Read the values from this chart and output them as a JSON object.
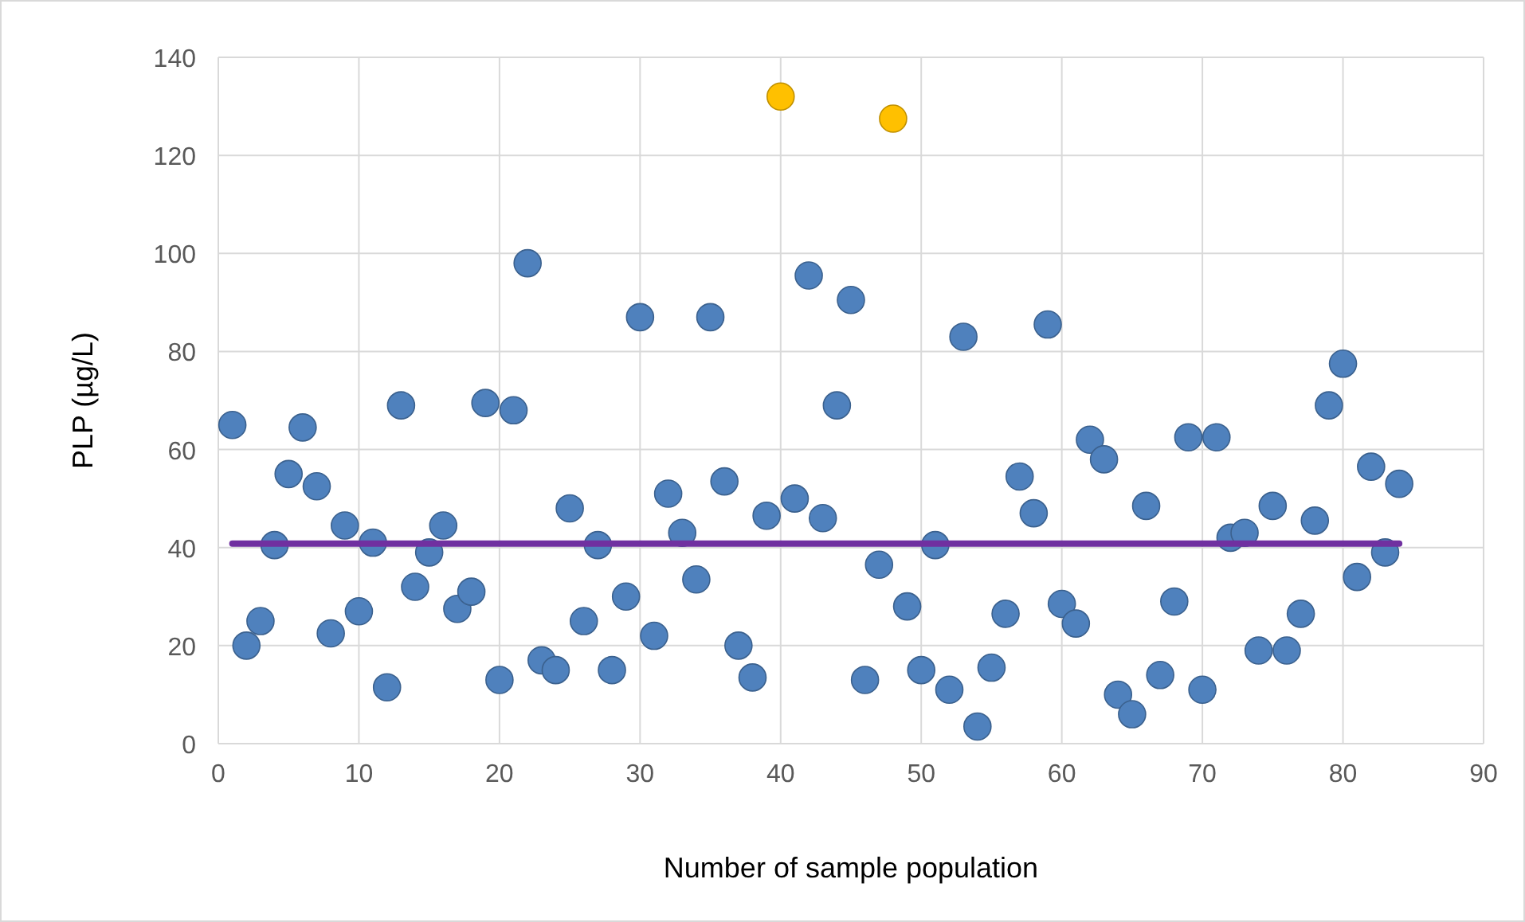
{
  "chart_data": {
    "type": "scatter",
    "xlabel": "Number of sample population",
    "ylabel": "PLP (µg/L)",
    "xlim": [
      0,
      90
    ],
    "ylim": [
      0,
      140
    ],
    "xticks": [
      0,
      10,
      20,
      30,
      40,
      50,
      60,
      70,
      80,
      90
    ],
    "yticks": [
      0,
      20,
      40,
      60,
      80,
      100,
      120,
      140
    ],
    "grid": true,
    "series": [
      {
        "color": "#4f81bd",
        "marker": "circle",
        "x": [
          1,
          2,
          3,
          4,
          5,
          6,
          7,
          8,
          9,
          10,
          11,
          12,
          13,
          14,
          15,
          16,
          17,
          18,
          19,
          20,
          21,
          22,
          23,
          24,
          25,
          26,
          27,
          28,
          29,
          30,
          31,
          32,
          33,
          34,
          35,
          36,
          37,
          38,
          39,
          41,
          42,
          43,
          44,
          45,
          46,
          47,
          49,
          50,
          51,
          52,
          53,
          54,
          55,
          56,
          57,
          58,
          59,
          60,
          61,
          62,
          63,
          64,
          65,
          66,
          67,
          68,
          69,
          70,
          71,
          72,
          73,
          74,
          75,
          76,
          77,
          78,
          79,
          80,
          81,
          82,
          83,
          84
        ],
        "values": [
          65,
          20,
          25,
          40.5,
          55,
          64.5,
          52.5,
          22.5,
          44.5,
          27,
          41,
          11.5,
          69,
          32,
          39,
          44.5,
          27.5,
          31,
          69.5,
          13,
          68,
          98,
          17,
          15,
          48,
          25,
          40.5,
          15,
          30,
          87,
          22,
          51,
          43,
          33.5,
          87,
          53.5,
          20,
          13.5,
          46.5,
          50,
          95.5,
          46,
          69,
          90.5,
          13,
          36.5,
          28,
          15,
          40.5,
          11,
          83,
          3.5,
          15.5,
          26.5,
          54.5,
          47,
          85.5,
          28.5,
          24.5,
          62,
          58,
          10,
          6,
          48.5,
          14,
          29,
          62.5,
          11,
          62.5,
          42,
          43,
          19,
          48.5,
          19,
          26.5,
          45.5,
          69,
          77.5,
          34,
          56.5,
          39,
          53
        ]
      },
      {
        "color": "#ffc000",
        "marker": "circle",
        "x": [
          40,
          48
        ],
        "values": [
          132,
          127.5
        ]
      },
      {
        "type": "line",
        "color": "#7030a0",
        "marker": "none",
        "x": [
          1,
          84
        ],
        "values": [
          40.8,
          40.8
        ]
      }
    ]
  }
}
